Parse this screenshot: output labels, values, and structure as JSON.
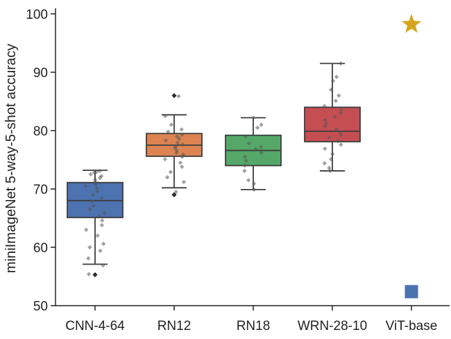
{
  "chart_data": {
    "type": "box",
    "title": "",
    "xlabel": "",
    "ylabel": "miniImageNet 5-way-5-shot accuracy",
    "ylim": [
      49,
      102
    ],
    "yticks": [
      50,
      60,
      70,
      80,
      90,
      100
    ],
    "grid": false,
    "categories": [
      "CNN-4-64",
      "RN12",
      "RN18",
      "WRN-28-10",
      "ViT-base"
    ],
    "colors": {
      "CNN-4-64": "#4c72b0",
      "RN12": "#dd8452",
      "RN18": "#55a868",
      "WRN-28-10": "#c44e52",
      "ViT-base": "#4c72b0",
      "star": "#d6a520",
      "points": "#555555",
      "axis": "#222222"
    },
    "boxes": [
      {
        "category": "CNN-4-64",
        "whisker_low": 57.1,
        "q1": 65.1,
        "median": 68.0,
        "q3": 71.1,
        "whisker_high": 73.2,
        "fliers": [
          55.3
        ],
        "points": [
          73.1,
          72.9,
          72.8,
          72.5,
          72.2,
          71.9,
          71.6,
          71.2,
          70.8,
          70.5,
          70.1,
          69.6,
          69.0,
          68.4,
          67.9,
          67.1,
          66.5,
          65.9,
          65.3,
          64.6,
          63.8,
          63.0,
          62.0,
          60.6,
          60.0,
          59.4,
          58.1,
          56.9,
          55.4
        ]
      },
      {
        "category": "RN12",
        "whisker_low": 70.2,
        "q1": 75.6,
        "median": 77.5,
        "q3": 79.5,
        "whisker_high": 82.7,
        "fliers": [
          86.0,
          69.0
        ],
        "points": [
          82.5,
          81.0,
          80.2,
          79.8,
          79.3,
          79.0,
          78.6,
          78.3,
          77.9,
          77.6,
          77.3,
          77.0,
          76.6,
          76.2,
          75.9,
          75.5,
          75.1,
          74.5,
          73.8,
          72.9,
          72.0,
          71.2,
          69.5,
          85.9
        ]
      },
      {
        "category": "RN18",
        "whisker_low": 69.9,
        "q1": 74.0,
        "median": 76.6,
        "q3": 79.2,
        "whisker_high": 82.2,
        "fliers": [],
        "points": [
          82.2,
          81.0,
          80.5,
          79.0,
          77.8,
          77.2,
          76.8,
          76.2,
          75.5,
          74.8,
          74.0,
          73.1,
          71.5,
          70.9,
          69.9
        ]
      },
      {
        "category": "WRN-28-10",
        "whisker_low": 73.1,
        "q1": 78.1,
        "median": 79.9,
        "q3": 84.0,
        "whisker_high": 91.5,
        "fliers": [],
        "points": [
          91.5,
          89.2,
          88.5,
          87.0,
          86.0,
          85.1,
          84.2,
          83.6,
          83.0,
          82.4,
          81.8,
          81.2,
          80.7,
          80.2,
          79.7,
          79.2,
          78.8,
          78.2,
          77.6,
          76.9,
          76.0,
          75.1,
          74.4,
          73.6,
          73.1
        ]
      }
    ],
    "markers": [
      {
        "category": "ViT-base",
        "shape": "star",
        "value": 98.2
      },
      {
        "category": "ViT-base",
        "shape": "square",
        "value": 52.4
      }
    ]
  }
}
